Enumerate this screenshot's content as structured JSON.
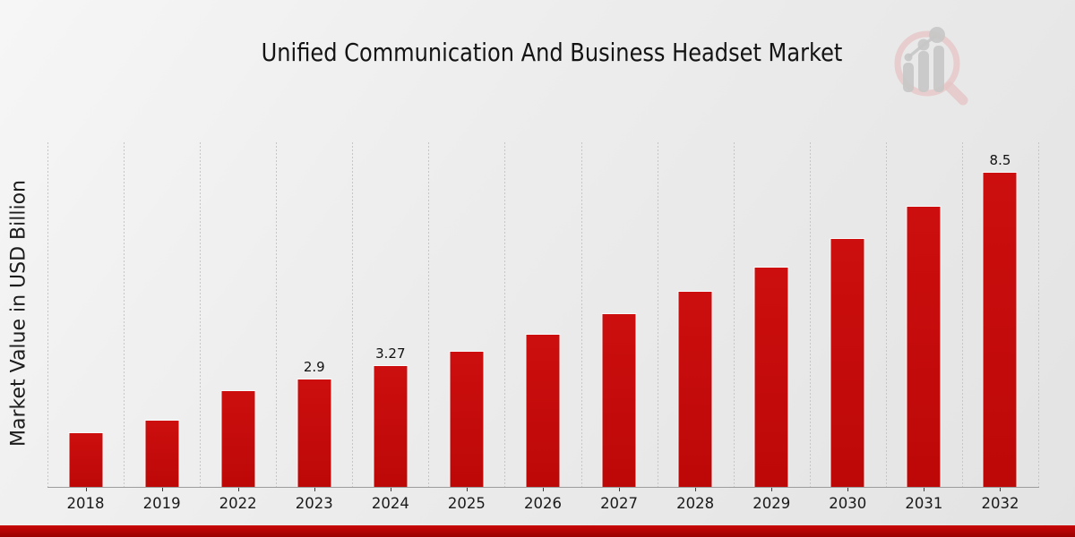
{
  "header": {
    "title": "Unified Communication And Business Headset Market"
  },
  "branding": {
    "logo_icon": "magnifier-bar-chart-logo-icon",
    "logo_ring_color": "#e6c6c6",
    "logo_glyph_color": "#c7c7c7"
  },
  "chart_data": {
    "type": "bar",
    "title": "Unified Communication And Business Headset Market",
    "xlabel": "",
    "ylabel": "Market Value in USD Billion",
    "unit": "USD Billion",
    "categories": [
      "2018",
      "2019",
      "2022",
      "2023",
      "2024",
      "2025",
      "2026",
      "2027",
      "2028",
      "2029",
      "2030",
      "2031",
      "2032"
    ],
    "values": [
      1.45,
      1.78,
      2.58,
      2.9,
      3.27,
      3.65,
      4.12,
      4.68,
      5.27,
      5.92,
      6.7,
      7.58,
      8.5
    ],
    "data_labels": [
      "",
      "",
      "",
      "2.9",
      "3.27",
      "",
      "",
      "",
      "",
      "",
      "",
      "",
      "8.5"
    ],
    "ylim": [
      0,
      9.32
    ],
    "grid": "vertical-dashed",
    "legend": "none",
    "bar_color": "#c60d0d",
    "accent_strip_color": "#b30404",
    "background": "light-gray-gradient"
  }
}
